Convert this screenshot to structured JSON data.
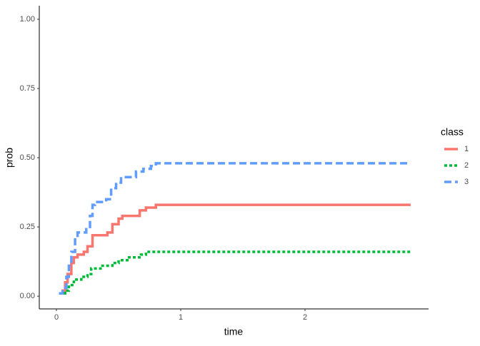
{
  "chart_data": {
    "type": "step",
    "x_label": "time",
    "y_label": "prob",
    "xlim": [
      -0.138,
      2.994
    ],
    "ylim": [
      -0.046,
      1.049
    ],
    "xticks": [
      0,
      1,
      2
    ],
    "yticks": [
      {
        "value": 0,
        "label": "0.00"
      },
      {
        "value": 0.25,
        "label": "0.25"
      },
      {
        "value": 0.5,
        "label": "0.50"
      },
      {
        "value": 0.75,
        "label": "0.75"
      },
      {
        "value": 1,
        "label": "1.00"
      }
    ],
    "grid": false,
    "legend_title": "class",
    "legend_position": "right",
    "series": [
      {
        "name": "1",
        "color": "#F8766D",
        "linetype": "solid",
        "x": [
          0.02,
          0.05,
          0.07,
          0.09,
          0.12,
          0.14,
          0.17,
          0.22,
          0.25,
          0.29,
          0.41,
          0.45,
          0.5,
          0.53,
          0.67,
          0.72,
          0.8,
          2.85
        ],
        "values": [
          0.01,
          0.02,
          0.05,
          0.08,
          0.12,
          0.14,
          0.15,
          0.16,
          0.18,
          0.22,
          0.23,
          0.26,
          0.28,
          0.29,
          0.31,
          0.32,
          0.33,
          0.33
        ]
      },
      {
        "name": "2",
        "color": "#00BA38",
        "linetype": "dotted",
        "x": [
          0.02,
          0.07,
          0.1,
          0.14,
          0.2,
          0.25,
          0.28,
          0.37,
          0.45,
          0.5,
          0.57,
          0.68,
          0.72,
          2.85
        ],
        "values": [
          0.01,
          0.02,
          0.04,
          0.06,
          0.07,
          0.08,
          0.1,
          0.11,
          0.12,
          0.13,
          0.14,
          0.15,
          0.16,
          0.16
        ]
      },
      {
        "name": "3",
        "color": "#619CFF",
        "linetype": "dashed",
        "x": [
          0.02,
          0.05,
          0.08,
          0.1,
          0.12,
          0.15,
          0.17,
          0.24,
          0.27,
          0.29,
          0.31,
          0.4,
          0.44,
          0.48,
          0.52,
          0.64,
          0.7,
          0.76,
          0.8,
          2.85
        ],
        "values": [
          0.01,
          0.03,
          0.07,
          0.11,
          0.16,
          0.21,
          0.23,
          0.25,
          0.29,
          0.33,
          0.34,
          0.35,
          0.39,
          0.41,
          0.43,
          0.45,
          0.46,
          0.47,
          0.48,
          0.48
        ]
      }
    ]
  }
}
